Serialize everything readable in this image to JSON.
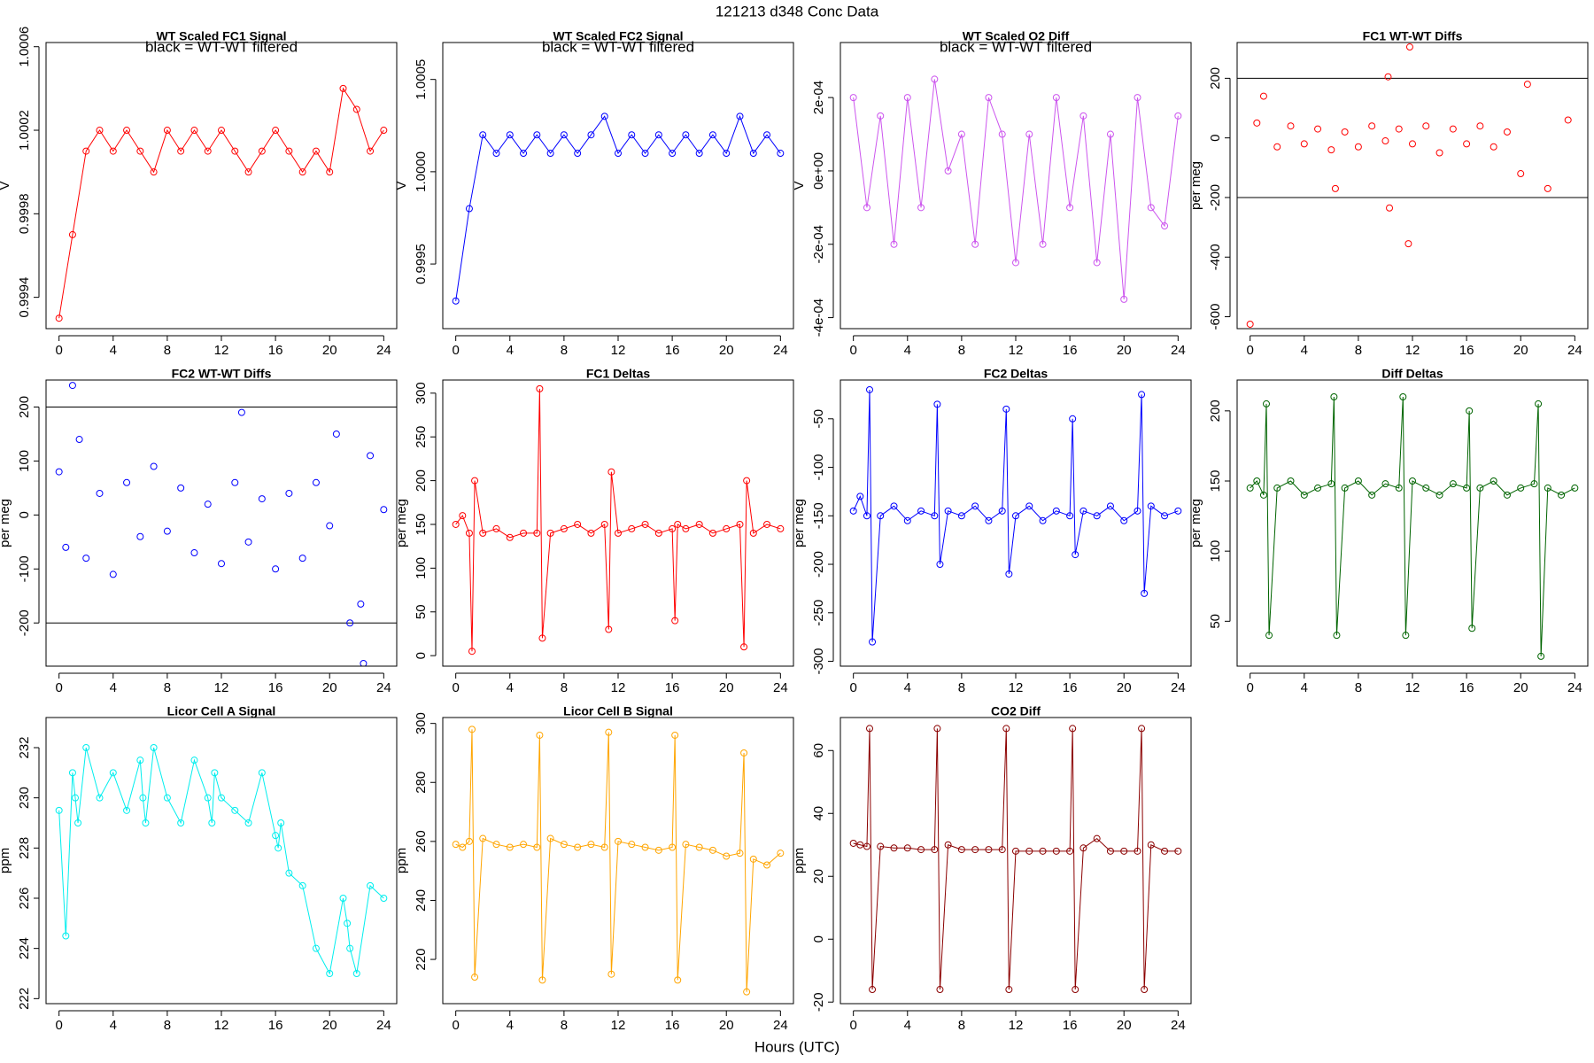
{
  "title": "121213   d348   Conc Data",
  "xlabel": "Hours (UTC)",
  "chart_data": [
    {
      "type": "line",
      "title": "WT Scaled FC1 Signal",
      "subtitle": "black = WT-WT filtered",
      "ylabel": "V",
      "x": [
        0,
        1,
        2,
        3,
        4,
        5,
        6,
        7,
        8,
        9,
        10,
        11,
        12,
        13,
        14,
        15,
        16,
        17,
        18,
        19,
        20,
        21,
        22,
        23,
        24
      ],
      "series": [
        {
          "color": "#ff0000",
          "values": [
            0.9993,
            0.9997,
            1.0001,
            1.0002,
            1.0001,
            1.0002,
            1.0001,
            1.0,
            1.0002,
            1.0001,
            1.0002,
            1.0001,
            1.0002,
            1.0001,
            1.0,
            1.0001,
            1.0002,
            1.0001,
            1.0,
            1.0001,
            1.0,
            1.0004,
            1.0003,
            1.0001,
            1.0002
          ]
        }
      ],
      "xlim": [
        -0.96,
        24.96
      ],
      "ylim": [
        0.99925,
        1.00062
      ],
      "xticks": [
        0,
        4,
        8,
        12,
        16,
        20,
        24
      ],
      "yticks": [
        0.9994,
        0.9998,
        1.0002,
        1.0006
      ]
    },
    {
      "type": "line",
      "title": "WT Scaled FC2 Signal",
      "subtitle": "black = WT-WT filtered",
      "ylabel": "V",
      "x": [
        0,
        1,
        2,
        3,
        4,
        5,
        6,
        7,
        8,
        9,
        10,
        11,
        12,
        13,
        14,
        15,
        16,
        17,
        18,
        19,
        20,
        21,
        22,
        23,
        24
      ],
      "series": [
        {
          "color": "#0000ff",
          "values": [
            0.9993,
            0.9998,
            1.0002,
            1.0001,
            1.0002,
            1.0001,
            1.0002,
            1.0001,
            1.0002,
            1.0001,
            1.0002,
            1.0003,
            1.0001,
            1.0002,
            1.0001,
            1.0002,
            1.0001,
            1.0002,
            1.0001,
            1.0002,
            1.0001,
            1.0003,
            1.0001,
            1.0002,
            1.0001
          ]
        }
      ],
      "xlim": [
        -0.96,
        24.96
      ],
      "ylim": [
        0.99915,
        1.0007
      ],
      "xticks": [
        0,
        4,
        8,
        12,
        16,
        20,
        24
      ],
      "yticks": [
        0.9995,
        {
          "value": 1,
          "label": "1.0000"
        },
        1.0005
      ]
    },
    {
      "type": "line",
      "title": "WT Scaled O2 Diff",
      "subtitle": "black = WT-WT filtered",
      "ylabel": "V",
      "x": [
        0,
        1,
        2,
        3,
        4,
        5,
        6,
        7,
        8,
        9,
        10,
        11,
        12,
        13,
        14,
        15,
        16,
        17,
        18,
        19,
        20,
        21,
        22,
        23,
        24
      ],
      "series": [
        {
          "color": "#cc55ee",
          "values": [
            0.0002,
            -0.0001,
            0.00015,
            -0.0002,
            0.0002,
            -0.0001,
            0.00025,
            0,
            0.0001,
            -0.0002,
            0.0002,
            0.0001,
            -0.00025,
            0.0001,
            -0.0002,
            0.0002,
            -0.0001,
            0.00015,
            -0.00025,
            0.0001,
            -0.00035,
            0.0002,
            -0.0001,
            -0.00015,
            0.00015
          ]
        }
      ],
      "xlim": [
        -0.96,
        24.96
      ],
      "ylim": [
        -0.00043,
        0.00035
      ],
      "xticks": [
        0,
        4,
        8,
        12,
        16,
        20,
        24
      ],
      "yticks": [
        {
          "value": -0.0004,
          "label": "-4e-04"
        },
        {
          "value": -0.0002,
          "label": "-2e-04"
        },
        {
          "value": 0,
          "label": "0e+00"
        },
        {
          "value": 0.0002,
          "label": "2e-04"
        }
      ]
    },
    {
      "type": "scatter",
      "title": "FC1 WT-WT Diffs",
      "ylabel": "per meg",
      "x": [
        0,
        0.5,
        1,
        2,
        3,
        4,
        5,
        6,
        6.3,
        7,
        8,
        9,
        10,
        10.2,
        10.3,
        11,
        11.7,
        11.8,
        12,
        13,
        14,
        15,
        16,
        17,
        18,
        19,
        20,
        20.5,
        22,
        23.5
      ],
      "series": [
        {
          "color": "#ff0000",
          "values": [
            -625,
            50,
            140,
            -30,
            40,
            -20,
            30,
            -40,
            -170,
            20,
            -30,
            40,
            -10,
            205,
            -235,
            30,
            -355,
            305,
            -20,
            40,
            -50,
            30,
            -20,
            40,
            -30,
            20,
            -120,
            180,
            -170,
            60
          ]
        }
      ],
      "hlines": [
        200,
        -200
      ],
      "xlim": [
        -0.96,
        24.96
      ],
      "ylim": [
        -640,
        320
      ],
      "xticks": [
        0,
        4,
        8,
        12,
        16,
        20,
        24
      ],
      "yticks": [
        -600,
        -400,
        -200,
        0,
        200
      ]
    },
    {
      "type": "scatter",
      "title": "FC2 WT-WT Diffs",
      "ylabel": "per meg",
      "x": [
        0,
        0.5,
        1,
        1.5,
        2,
        3,
        4,
        5,
        6,
        7,
        8,
        9,
        10,
        11,
        12,
        13,
        13.5,
        14,
        15,
        16,
        17,
        18,
        19,
        20,
        20.5,
        21.5,
        22.3,
        22.5,
        23,
        24
      ],
      "series": [
        {
          "color": "#0000ff",
          "values": [
            80,
            -60,
            240,
            140,
            -80,
            40,
            -110,
            60,
            -40,
            90,
            -30,
            50,
            -70,
            20,
            -90,
            60,
            190,
            -50,
            30,
            -100,
            40,
            -80,
            60,
            -20,
            150,
            -200,
            -165,
            -275,
            110,
            10
          ]
        }
      ],
      "hlines": [
        200,
        -200
      ],
      "xlim": [
        -0.96,
        24.96
      ],
      "ylim": [
        -280,
        250
      ],
      "xticks": [
        0,
        4,
        8,
        12,
        16,
        20,
        24
      ],
      "yticks": [
        -200,
        -100,
        0,
        100,
        200
      ]
    },
    {
      "type": "line",
      "title": "FC1 Deltas",
      "ylabel": "per meg",
      "x": [
        0,
        0.5,
        1,
        1.2,
        1.4,
        2,
        3,
        4,
        5,
        6,
        6.2,
        6.4,
        7,
        8,
        9,
        10,
        11,
        11.3,
        11.5,
        12,
        13,
        14,
        15,
        16,
        16.2,
        16.4,
        17,
        18,
        19,
        20,
        21,
        21.3,
        21.5,
        22,
        23,
        24
      ],
      "series": [
        {
          "color": "#ff0000",
          "values": [
            150,
            160,
            140,
            5,
            200,
            140,
            145,
            135,
            140,
            140,
            305,
            20,
            140,
            145,
            150,
            140,
            150,
            30,
            210,
            140,
            145,
            150,
            140,
            145,
            40,
            150,
            145,
            150,
            140,
            145,
            150,
            10,
            200,
            140,
            150,
            145
          ]
        }
      ],
      "xlim": [
        -0.96,
        24.96
      ],
      "ylim": [
        -12,
        315
      ],
      "xticks": [
        0,
        4,
        8,
        12,
        16,
        20,
        24
      ],
      "yticks": [
        0,
        50,
        100,
        150,
        200,
        250,
        300
      ]
    },
    {
      "type": "line",
      "title": "FC2 Deltas",
      "ylabel": "per meg",
      "x": [
        0,
        0.5,
        1,
        1.2,
        1.4,
        2,
        3,
        4,
        5,
        6,
        6.2,
        6.4,
        7,
        8,
        9,
        10,
        11,
        11.3,
        11.5,
        12,
        13,
        14,
        15,
        16,
        16.2,
        16.4,
        17,
        18,
        19,
        20,
        21,
        21.3,
        21.5,
        22,
        23,
        24
      ],
      "series": [
        {
          "color": "#0000ff",
          "values": [
            -145,
            -130,
            -150,
            -20,
            -280,
            -150,
            -140,
            -155,
            -145,
            -150,
            -35,
            -200,
            -145,
            -150,
            -140,
            -155,
            -145,
            -40,
            -210,
            -150,
            -140,
            -155,
            -145,
            -150,
            -50,
            -190,
            -145,
            -150,
            -140,
            -155,
            -145,
            -25,
            -230,
            -140,
            -150,
            -145
          ]
        }
      ],
      "xlim": [
        -0.96,
        24.96
      ],
      "ylim": [
        -305,
        -10
      ],
      "xticks": [
        0,
        4,
        8,
        12,
        16,
        20,
        24
      ],
      "yticks": [
        -300,
        -250,
        -200,
        -150,
        -100,
        -50
      ]
    },
    {
      "type": "line",
      "title": "Diff Deltas",
      "ylabel": "per meg",
      "x": [
        0,
        0.5,
        1,
        1.2,
        1.4,
        2,
        3,
        4,
        5,
        6,
        6.2,
        6.4,
        7,
        8,
        9,
        10,
        11,
        11.3,
        11.5,
        12,
        13,
        14,
        15,
        16,
        16.2,
        16.4,
        17,
        18,
        19,
        20,
        21,
        21.3,
        21.5,
        22,
        23,
        24
      ],
      "series": [
        {
          "color": "#006400",
          "values": [
            145,
            150,
            140,
            205,
            40,
            145,
            150,
            140,
            145,
            148,
            210,
            40,
            145,
            150,
            140,
            148,
            145,
            210,
            40,
            150,
            145,
            140,
            148,
            145,
            200,
            45,
            145,
            150,
            140,
            145,
            148,
            205,
            25,
            145,
            140,
            145
          ]
        }
      ],
      "xlim": [
        -0.96,
        24.96
      ],
      "ylim": [
        18,
        222
      ],
      "xticks": [
        0,
        4,
        8,
        12,
        16,
        20,
        24
      ],
      "yticks": [
        50,
        100,
        150,
        200
      ]
    },
    {
      "type": "line",
      "title": "Licor Cell A Signal",
      "ylabel": "ppm",
      "x": [
        0,
        0.5,
        1,
        1.2,
        1.4,
        2,
        3,
        4,
        5,
        6,
        6.2,
        6.4,
        7,
        8,
        9,
        10,
        11,
        11.3,
        11.5,
        12,
        13,
        14,
        15,
        16,
        16.2,
        16.4,
        17,
        18,
        19,
        20,
        21,
        21.3,
        21.5,
        22,
        23,
        24
      ],
      "series": [
        {
          "color": "#00eeee",
          "values": [
            229.5,
            224.5,
            231,
            230,
            229,
            232,
            230,
            231,
            229.5,
            231.5,
            230,
            229,
            232,
            230,
            229,
            231.5,
            230,
            229,
            231,
            230,
            229.5,
            229,
            231,
            228.5,
            228,
            229,
            227,
            226.5,
            224,
            223,
            226,
            225,
            224,
            223,
            226.5,
            226
          ]
        }
      ],
      "xlim": [
        -0.96,
        24.96
      ],
      "ylim": [
        221.8,
        233.2
      ],
      "xticks": [
        0,
        4,
        8,
        12,
        16,
        20,
        24
      ],
      "yticks": [
        222,
        224,
        226,
        228,
        230,
        232
      ]
    },
    {
      "type": "line",
      "title": "Licor Cell B Signal",
      "ylabel": "ppm",
      "x": [
        0,
        0.5,
        1,
        1.2,
        1.4,
        2,
        3,
        4,
        5,
        6,
        6.2,
        6.4,
        7,
        8,
        9,
        10,
        11,
        11.3,
        11.5,
        12,
        13,
        14,
        15,
        16,
        16.2,
        16.4,
        17,
        18,
        19,
        20,
        21,
        21.3,
        21.5,
        22,
        23,
        24
      ],
      "series": [
        {
          "color": "#ffa500",
          "values": [
            259,
            258,
            260,
            298,
            214,
            261,
            259,
            258,
            259,
            258,
            296,
            213,
            261,
            259,
            258,
            259,
            258,
            297,
            215,
            260,
            259,
            258,
            257,
            258,
            296,
            213,
            259,
            258,
            257,
            255,
            256,
            290,
            209,
            254,
            252,
            256
          ]
        }
      ],
      "xlim": [
        -0.96,
        24.96
      ],
      "ylim": [
        205,
        302
      ],
      "xticks": [
        0,
        4,
        8,
        12,
        16,
        20,
        24
      ],
      "yticks": [
        220,
        240,
        260,
        280,
        300
      ]
    },
    {
      "type": "line",
      "title": "CO2 Diff",
      "ylabel": "ppm",
      "x": [
        0,
        0.5,
        1,
        1.2,
        1.4,
        2,
        3,
        4,
        5,
        6,
        6.2,
        6.4,
        7,
        8,
        9,
        10,
        11,
        11.3,
        11.5,
        12,
        13,
        14,
        15,
        16,
        16.2,
        16.4,
        17,
        18,
        19,
        20,
        21,
        21.3,
        21.5,
        22,
        23,
        24
      ],
      "series": [
        {
          "color": "#8b0000",
          "values": [
            30.5,
            30,
            29.5,
            67,
            -16,
            29.5,
            29,
            29,
            28.5,
            28.5,
            67,
            -16,
            30,
            28.5,
            28.5,
            28.5,
            28.5,
            67,
            -16,
            28,
            28,
            28,
            28,
            28,
            67,
            -16,
            29,
            32,
            28,
            28,
            28,
            67,
            -16,
            30,
            28,
            28
          ]
        }
      ],
      "xlim": [
        -0.96,
        24.96
      ],
      "ylim": [
        -20.5,
        70.5
      ],
      "xticks": [
        0,
        4,
        8,
        12,
        16,
        20,
        24
      ],
      "yticks": [
        -20,
        0,
        20,
        40,
        60
      ]
    }
  ]
}
